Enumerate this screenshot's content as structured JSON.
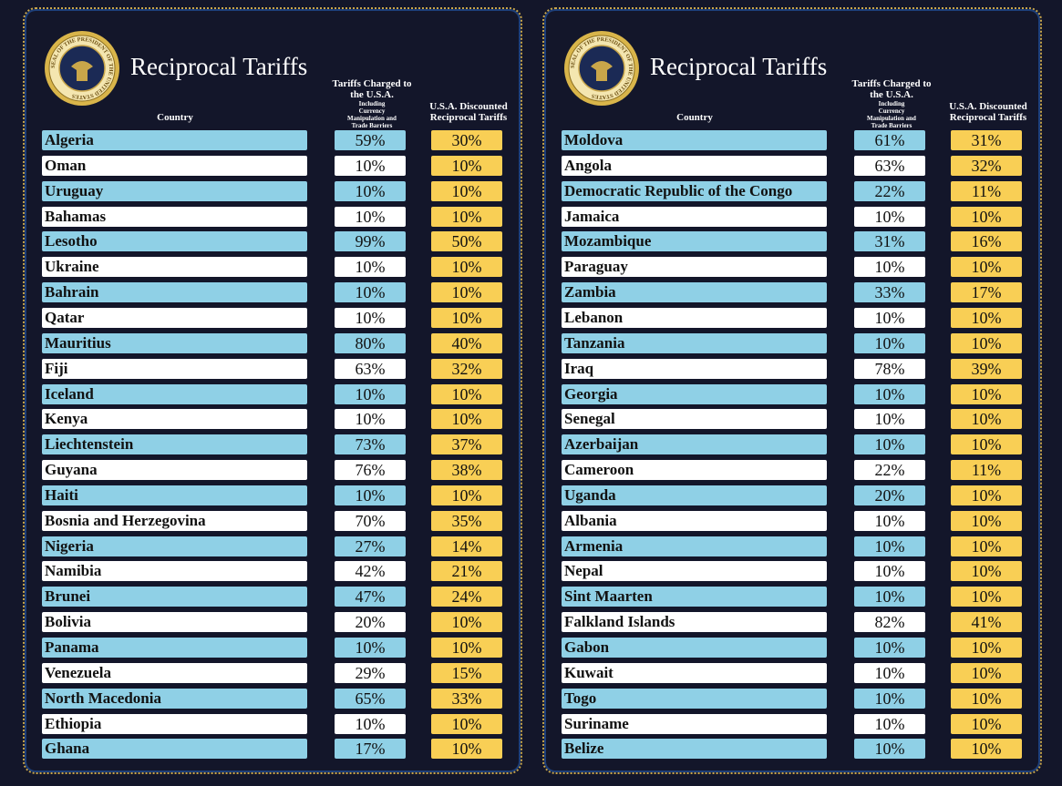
{
  "panels": [
    {
      "seal_text": "SEAL OF THE PRESIDENT OF THE UNITED STATES",
      "title": "Reciprocal Tariffs",
      "headers": {
        "country": "Country",
        "tariffs_charged": "Tariffs Charged to the U.S.A.",
        "tariffs_note": "Including Currency Manipulation and Trade Barriers",
        "reciprocal": "U.S.A. Discounted Reciprocal Tariffs"
      },
      "rows": [
        [
          "Algeria",
          "59%",
          "30%"
        ],
        [
          "Oman",
          "10%",
          "10%"
        ],
        [
          "Uruguay",
          "10%",
          "10%"
        ],
        [
          "Bahamas",
          "10%",
          "10%"
        ],
        [
          "Lesotho",
          "99%",
          "50%"
        ],
        [
          "Ukraine",
          "10%",
          "10%"
        ],
        [
          "Bahrain",
          "10%",
          "10%"
        ],
        [
          "Qatar",
          "10%",
          "10%"
        ],
        [
          "Mauritius",
          "80%",
          "40%"
        ],
        [
          "Fiji",
          "63%",
          "32%"
        ],
        [
          "Iceland",
          "10%",
          "10%"
        ],
        [
          "Kenya",
          "10%",
          "10%"
        ],
        [
          "Liechtenstein",
          "73%",
          "37%"
        ],
        [
          "Guyana",
          "76%",
          "38%"
        ],
        [
          "Haiti",
          "10%",
          "10%"
        ],
        [
          "Bosnia and Herzegovina",
          "70%",
          "35%"
        ],
        [
          "Nigeria",
          "27%",
          "14%"
        ],
        [
          "Namibia",
          "42%",
          "21%"
        ],
        [
          "Brunei",
          "47%",
          "24%"
        ],
        [
          "Bolivia",
          "20%",
          "10%"
        ],
        [
          "Panama",
          "10%",
          "10%"
        ],
        [
          "Venezuela",
          "29%",
          "15%"
        ],
        [
          "North Macedonia",
          "65%",
          "33%"
        ],
        [
          "Ethiopia",
          "10%",
          "10%"
        ],
        [
          "Ghana",
          "17%",
          "10%"
        ]
      ]
    },
    {
      "seal_text": "SEAL OF THE PRESIDENT OF THE UNITED STATES",
      "title": "Reciprocal Tariffs",
      "headers": {
        "country": "Country",
        "tariffs_charged": "Tariffs Charged to the U.S.A.",
        "tariffs_note": "Including Currency Manipulation and Trade Barriers",
        "reciprocal": "U.S.A. Discounted Reciprocal Tariffs"
      },
      "rows": [
        [
          "Moldova",
          "61%",
          "31%"
        ],
        [
          "Angola",
          "63%",
          "32%"
        ],
        [
          "Democratic Republic of the Congo",
          "22%",
          "11%"
        ],
        [
          "Jamaica",
          "10%",
          "10%"
        ],
        [
          "Mozambique",
          "31%",
          "16%"
        ],
        [
          "Paraguay",
          "10%",
          "10%"
        ],
        [
          "Zambia",
          "33%",
          "17%"
        ],
        [
          "Lebanon",
          "10%",
          "10%"
        ],
        [
          "Tanzania",
          "10%",
          "10%"
        ],
        [
          "Iraq",
          "78%",
          "39%"
        ],
        [
          "Georgia",
          "10%",
          "10%"
        ],
        [
          "Senegal",
          "10%",
          "10%"
        ],
        [
          "Azerbaijan",
          "10%",
          "10%"
        ],
        [
          "Cameroon",
          "22%",
          "11%"
        ],
        [
          "Uganda",
          "20%",
          "10%"
        ],
        [
          "Albania",
          "10%",
          "10%"
        ],
        [
          "Armenia",
          "10%",
          "10%"
        ],
        [
          "Nepal",
          "10%",
          "10%"
        ],
        [
          "Sint Maarten",
          "10%",
          "10%"
        ],
        [
          "Falkland Islands",
          "82%",
          "41%"
        ],
        [
          "Gabon",
          "10%",
          "10%"
        ],
        [
          "Kuwait",
          "10%",
          "10%"
        ],
        [
          "Togo",
          "10%",
          "10%"
        ],
        [
          "Suriname",
          "10%",
          "10%"
        ],
        [
          "Belize",
          "10%",
          "10%"
        ]
      ]
    }
  ]
}
